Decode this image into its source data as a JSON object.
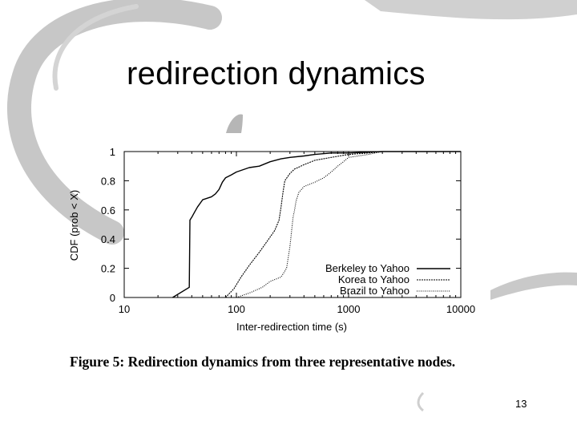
{
  "slide": {
    "title": "redirection dynamics",
    "caption": "Figure 5:  Redirection dynamics from three representative nodes.",
    "page_number": "13"
  },
  "chart_data": {
    "type": "line",
    "title": "",
    "xlabel": "Inter-redirection time (s)",
    "ylabel": "CDF (prob < X)",
    "xscale": "log",
    "xlim": [
      10,
      10000
    ],
    "ylim": [
      0,
      1
    ],
    "xticks": [
      10,
      100,
      1000,
      10000
    ],
    "xtick_labels": [
      "10",
      "100",
      "1000",
      "10000"
    ],
    "yticks": [
      0,
      0.2,
      0.4,
      0.6,
      0.8,
      1
    ],
    "ytick_labels": [
      "0",
      "0.2",
      "0.4",
      "0.6",
      "0.8",
      "1"
    ],
    "grid": false,
    "legend": "bottom-right",
    "series": [
      {
        "name": "Berkeley to Yahoo",
        "style": "solid",
        "x": [
          27,
          38,
          38.5,
          40,
          42,
          45,
          50,
          60,
          65,
          70,
          75,
          80,
          90,
          100,
          130,
          160,
          200,
          250,
          300,
          400,
          500,
          700,
          1000,
          2000,
          10000
        ],
        "y": [
          0,
          0.07,
          0.53,
          0.55,
          0.58,
          0.62,
          0.67,
          0.69,
          0.71,
          0.74,
          0.79,
          0.82,
          0.84,
          0.86,
          0.89,
          0.9,
          0.93,
          0.95,
          0.96,
          0.97,
          0.98,
          0.99,
          0.99,
          1.0,
          1.0
        ]
      },
      {
        "name": "Korea to Yahoo",
        "style": "dashed",
        "x": [
          80,
          95,
          110,
          130,
          160,
          190,
          220,
          240,
          250,
          260,
          270,
          300,
          330,
          400,
          500,
          700,
          1000,
          1500,
          2000,
          10000
        ],
        "y": [
          0,
          0.06,
          0.14,
          0.22,
          0.31,
          0.39,
          0.46,
          0.53,
          0.62,
          0.72,
          0.8,
          0.85,
          0.88,
          0.91,
          0.94,
          0.96,
          0.98,
          0.99,
          1.0,
          1.0
        ]
      },
      {
        "name": "Brazil to Yahoo",
        "style": "dotted",
        "x": [
          100,
          130,
          170,
          200,
          250,
          280,
          300,
          320,
          330,
          340,
          360,
          400,
          500,
          600,
          700,
          800,
          900,
          1000,
          1500,
          2000,
          10000
        ],
        "y": [
          0,
          0.03,
          0.07,
          0.11,
          0.14,
          0.2,
          0.35,
          0.55,
          0.6,
          0.66,
          0.72,
          0.76,
          0.79,
          0.82,
          0.86,
          0.9,
          0.93,
          0.96,
          0.98,
          1.0,
          1.0
        ]
      }
    ]
  }
}
